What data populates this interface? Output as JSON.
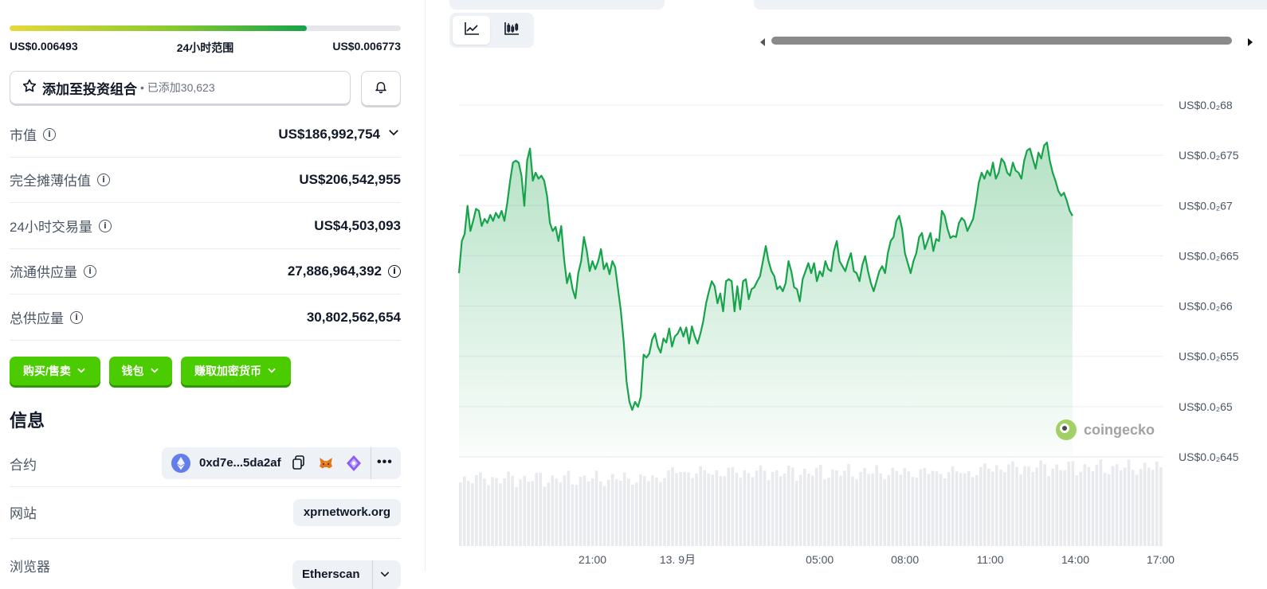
{
  "range": {
    "low": "US$0.006493",
    "label": "24小时范围",
    "high": "US$0.006773",
    "fill_fraction": 0.76
  },
  "portfolio": {
    "label": "添加至投资组合",
    "sub": "• 已添加30,623"
  },
  "stats": [
    {
      "label": "市值",
      "value": "US$186,992,754"
    },
    {
      "label": "完全摊薄估值",
      "value": "US$206,542,955"
    },
    {
      "label": "24小时交易量",
      "value": "US$4,503,093"
    },
    {
      "label": "流通供应量",
      "value": "27,886,964,392"
    },
    {
      "label": "总供应量",
      "value": "30,802,562,654"
    }
  ],
  "buttons": {
    "buy_sell": "购买/售卖",
    "wallet": "钱包",
    "earn": "赚取加密货币"
  },
  "info": {
    "title": "信息",
    "contract_label": "合约",
    "contract_address": "0xd7e...5da2af",
    "website_label": "网站",
    "website": "xprnetwork.org",
    "explorer_label": "浏览器",
    "explorer": "Etherscan"
  },
  "colors": {
    "green_line": "#16a34a",
    "brand_green": "#4bcc00"
  },
  "chart_data": {
    "type": "area",
    "title": "",
    "y_ticks": [
      "US$0.0₂68",
      "US$0.0₂675",
      "US$0.0₂67",
      "US$0.0₂665",
      "US$0.0₂66",
      "US$0.0₂655",
      "US$0.0₂65",
      "US$0.0₂645"
    ],
    "y_tick_values": [
      0.0068,
      0.00675,
      0.0067,
      0.00665,
      0.0066,
      0.00655,
      0.0065,
      0.00645
    ],
    "ylim": [
      0.00645,
      0.0068
    ],
    "x_ticks": [
      "21:00",
      "13. 9月",
      "05:00",
      "08:00",
      "11:00",
      "14:00",
      "17:00"
    ],
    "x_tick_hours": [
      21,
      24,
      29,
      32,
      35,
      38,
      41
    ],
    "xlim_hours": [
      16.3,
      41.1
    ],
    "series": [
      {
        "values": [
          [
            16.3,
            0.006628
          ],
          [
            16.4,
            0.00666
          ],
          [
            16.5,
            0.006667
          ],
          [
            16.6,
            0.006695
          ],
          [
            16.7,
            0.00667
          ],
          [
            16.8,
            0.00668
          ],
          [
            16.9,
            0.006692
          ],
          [
            17.0,
            0.00669
          ],
          [
            17.1,
            0.006675
          ],
          [
            17.2,
            0.006682
          ],
          [
            17.3,
            0.006678
          ],
          [
            17.4,
            0.006686
          ],
          [
            17.5,
            0.00668
          ],
          [
            17.6,
            0.006688
          ],
          [
            17.7,
            0.006683
          ],
          [
            17.8,
            0.00669
          ],
          [
            17.9,
            0.00668
          ],
          [
            18.0,
            0.006698
          ],
          [
            18.1,
            0.00672
          ],
          [
            18.2,
            0.006738
          ],
          [
            18.3,
            0.00674
          ],
          [
            18.4,
            0.006738
          ],
          [
            18.5,
            0.006725
          ],
          [
            18.6,
            0.006695
          ],
          [
            18.7,
            0.00674
          ],
          [
            18.8,
            0.006752
          ],
          [
            18.9,
            0.00672
          ],
          [
            19.0,
            0.006728
          ],
          [
            19.1,
            0.006722
          ],
          [
            19.2,
            0.006725
          ],
          [
            19.3,
            0.00672
          ],
          [
            19.4,
            0.006705
          ],
          [
            19.5,
            0.006678
          ],
          [
            19.6,
            0.00667
          ],
          [
            19.7,
            0.006674
          ],
          [
            19.8,
            0.00666
          ],
          [
            19.9,
            0.006675
          ],
          [
            20.0,
            0.006642
          ],
          [
            20.1,
            0.006618
          ],
          [
            20.2,
            0.006628
          ],
          [
            20.3,
            0.006612
          ],
          [
            20.4,
            0.006603
          ],
          [
            20.5,
            0.006628
          ],
          [
            20.6,
            0.00664
          ],
          [
            20.7,
            0.006664
          ],
          [
            20.8,
            0.00665
          ],
          [
            20.9,
            0.00663
          ],
          [
            21.0,
            0.00664
          ],
          [
            21.1,
            0.006632
          ],
          [
            21.2,
            0.00664
          ],
          [
            21.3,
            0.006652
          ],
          [
            21.4,
            0.006632
          ],
          [
            21.5,
            0.006638
          ],
          [
            21.6,
            0.006627
          ],
          [
            21.7,
            0.00664
          ],
          [
            21.8,
            0.006634
          ],
          [
            21.9,
            0.006612
          ],
          [
            22.0,
            0.00659
          ],
          [
            22.1,
            0.00656
          ],
          [
            22.2,
            0.00652
          ],
          [
            22.3,
            0.0065
          ],
          [
            22.4,
            0.006492
          ],
          [
            22.5,
            0.0065
          ],
          [
            22.6,
            0.006495
          ],
          [
            22.7,
            0.006505
          ],
          [
            22.8,
            0.006547
          ],
          [
            22.9,
            0.006544
          ],
          [
            23.0,
            0.006548
          ],
          [
            23.1,
            0.006562
          ],
          [
            23.2,
            0.006568
          ],
          [
            23.3,
            0.006555
          ],
          [
            23.4,
            0.006549
          ],
          [
            23.5,
            0.006563
          ],
          [
            23.6,
            0.006559
          ],
          [
            23.7,
            0.006573
          ],
          [
            23.8,
            0.006555
          ],
          [
            23.9,
            0.006565
          ],
          [
            24.0,
            0.006568
          ],
          [
            24.1,
            0.006574
          ],
          [
            24.2,
            0.006565
          ],
          [
            24.3,
            0.006574
          ],
          [
            24.4,
            0.006558
          ],
          [
            24.5,
            0.006575
          ],
          [
            24.6,
            0.006565
          ],
          [
            24.7,
            0.006558
          ],
          [
            24.8,
            0.006568
          ],
          [
            24.9,
            0.00658
          ],
          [
            25.0,
            0.006598
          ],
          [
            25.1,
            0.00661
          ],
          [
            25.2,
            0.00662
          ],
          [
            25.3,
            0.006615
          ],
          [
            25.4,
            0.006598
          ],
          [
            25.5,
            0.006608
          ],
          [
            25.6,
            0.00659
          ],
          [
            25.7,
            0.00662
          ],
          [
            25.8,
            0.006622
          ],
          [
            25.9,
            0.00662
          ],
          [
            26.0,
            0.00659
          ],
          [
            26.1,
            0.006615
          ],
          [
            26.2,
            0.006592
          ],
          [
            26.3,
            0.00662
          ],
          [
            26.4,
            0.006622
          ],
          [
            26.5,
            0.006602
          ],
          [
            26.6,
            0.006612
          ],
          [
            26.7,
            0.006614
          ],
          [
            26.8,
            0.00662
          ],
          [
            26.9,
            0.006625
          ],
          [
            27.0,
            0.00664
          ],
          [
            27.1,
            0.006655
          ],
          [
            27.2,
            0.00664
          ],
          [
            27.3,
            0.00663
          ],
          [
            27.4,
            0.006625
          ],
          [
            27.5,
            0.006612
          ],
          [
            27.6,
            0.006615
          ],
          [
            27.7,
            0.00661
          ],
          [
            27.8,
            0.006618
          ],
          [
            27.9,
            0.00664
          ],
          [
            28.0,
            0.00663
          ],
          [
            28.1,
            0.006614
          ],
          [
            28.2,
            0.006612
          ],
          [
            28.3,
            0.0066
          ],
          [
            28.4,
            0.006622
          ],
          [
            28.5,
            0.00663
          ],
          [
            28.6,
            0.006638
          ],
          [
            28.7,
            0.006628
          ],
          [
            28.8,
            0.006638
          ],
          [
            28.9,
            0.00662
          ],
          [
            29.0,
            0.00663
          ],
          [
            29.1,
            0.006625
          ],
          [
            29.2,
            0.00664
          ],
          [
            29.3,
            0.006632
          ],
          [
            29.4,
            0.00663
          ],
          [
            29.5,
            0.00665
          ],
          [
            29.6,
            0.00666
          ],
          [
            29.7,
            0.00664
          ],
          [
            29.8,
            0.006635
          ],
          [
            29.9,
            0.00663
          ],
          [
            30.0,
            0.00664
          ],
          [
            30.1,
            0.006648
          ],
          [
            30.2,
            0.00663
          ],
          [
            30.3,
            0.006628
          ],
          [
            30.4,
            0.00662
          ],
          [
            30.5,
            0.006636
          ],
          [
            30.6,
            0.006645
          ],
          [
            30.7,
            0.00663
          ],
          [
            30.8,
            0.006618
          ],
          [
            30.9,
            0.00661
          ],
          [
            31.0,
            0.00662
          ],
          [
            31.1,
            0.00663
          ],
          [
            31.2,
            0.006635
          ],
          [
            31.3,
            0.006628
          ],
          [
            31.4,
            0.006648
          ],
          [
            31.5,
            0.00666
          ],
          [
            31.6,
            0.006664
          ],
          [
            31.7,
            0.00668
          ],
          [
            31.8,
            0.006685
          ],
          [
            31.9,
            0.006672
          ],
          [
            32.0,
            0.006648
          ],
          [
            32.1,
            0.006638
          ],
          [
            32.2,
            0.006628
          ],
          [
            32.3,
            0.00664
          ],
          [
            32.4,
            0.006648
          ],
          [
            32.5,
            0.006664
          ],
          [
            32.6,
            0.006668
          ],
          [
            32.7,
            0.006652
          ],
          [
            32.8,
            0.00666
          ],
          [
            32.9,
            0.006668
          ],
          [
            33.0,
            0.00665
          ],
          [
            33.1,
            0.006662
          ],
          [
            33.2,
            0.00666
          ],
          [
            33.3,
            0.00669
          ],
          [
            33.4,
            0.006685
          ],
          [
            33.5,
            0.006672
          ],
          [
            33.6,
            0.006663
          ],
          [
            33.7,
            0.006665
          ],
          [
            33.8,
            0.006664
          ],
          [
            33.9,
            0.006678
          ],
          [
            34.0,
            0.006683
          ],
          [
            34.1,
            0.00668
          ],
          [
            34.2,
            0.00667
          ],
          [
            34.3,
            0.006676
          ],
          [
            34.4,
            0.006682
          ],
          [
            34.5,
            0.006698
          ],
          [
            34.6,
            0.006718
          ],
          [
            34.7,
            0.006728
          ],
          [
            34.8,
            0.006722
          ],
          [
            34.9,
            0.00673
          ],
          [
            35.0,
            0.006725
          ],
          [
            35.1,
            0.006738
          ],
          [
            35.2,
            0.006722
          ],
          [
            35.3,
            0.006728
          ],
          [
            35.4,
            0.006742
          ],
          [
            35.5,
            0.006738
          ],
          [
            35.6,
            0.006728
          ],
          [
            35.7,
            0.006725
          ],
          [
            35.8,
            0.006738
          ],
          [
            35.9,
            0.00673
          ],
          [
            36.0,
            0.006728
          ],
          [
            36.1,
            0.006722
          ],
          [
            36.2,
            0.00674
          ],
          [
            36.3,
            0.00675
          ],
          [
            36.4,
            0.006752
          ],
          [
            36.5,
            0.006742
          ],
          [
            36.6,
            0.006732
          ],
          [
            36.7,
            0.006748
          ],
          [
            36.8,
            0.006742
          ],
          [
            36.9,
            0.006755
          ],
          [
            37.0,
            0.006758
          ],
          [
            37.1,
            0.00674
          ],
          [
            37.2,
            0.006728
          ],
          [
            37.3,
            0.00672
          ],
          [
            37.4,
            0.00671
          ],
          [
            37.5,
            0.006705
          ],
          [
            37.6,
            0.006708
          ],
          [
            37.7,
            0.0067
          ],
          [
            37.8,
            0.00669
          ],
          [
            37.9,
            0.006685
          ]
        ]
      }
    ],
    "volume_bars": "relative heights shown in lower band"
  }
}
